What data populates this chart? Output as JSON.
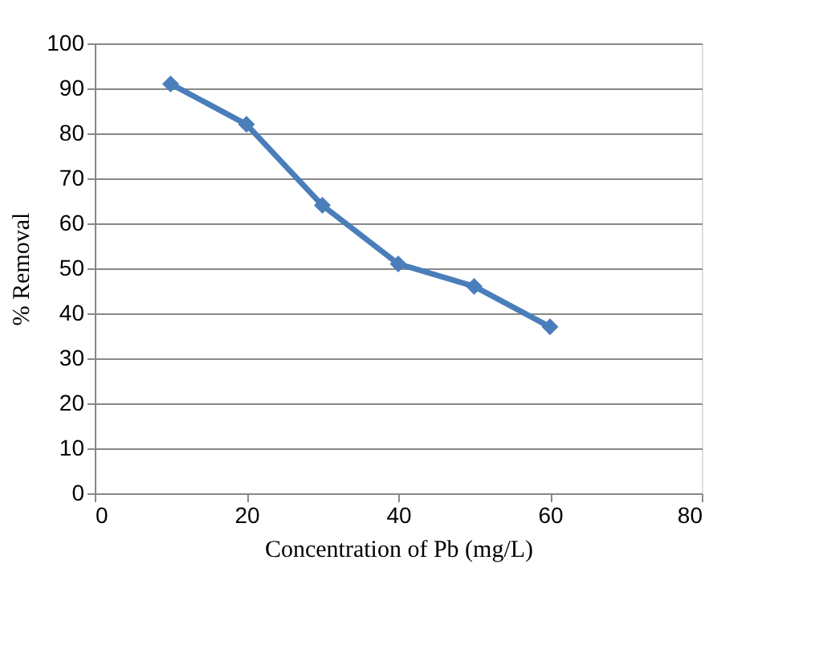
{
  "chart_data": {
    "type": "line",
    "xlabel": "Concentration of Pb (mg/L)",
    "ylabel": "% Removal",
    "x": [
      10,
      20,
      30,
      40,
      50,
      60
    ],
    "series": [
      {
        "color": "#4a7ebb",
        "values": [
          91,
          82,
          64,
          51,
          46,
          37
        ]
      }
    ],
    "xlim": [
      0,
      80
    ],
    "xticks": [
      0,
      20,
      40,
      60,
      80
    ],
    "ylim": [
      0,
      100
    ],
    "yticks": [
      0,
      10,
      20,
      30,
      40,
      50,
      60,
      70,
      80,
      90,
      100
    ],
    "grid": "y",
    "marker": "diamond",
    "line_style": "solid"
  }
}
